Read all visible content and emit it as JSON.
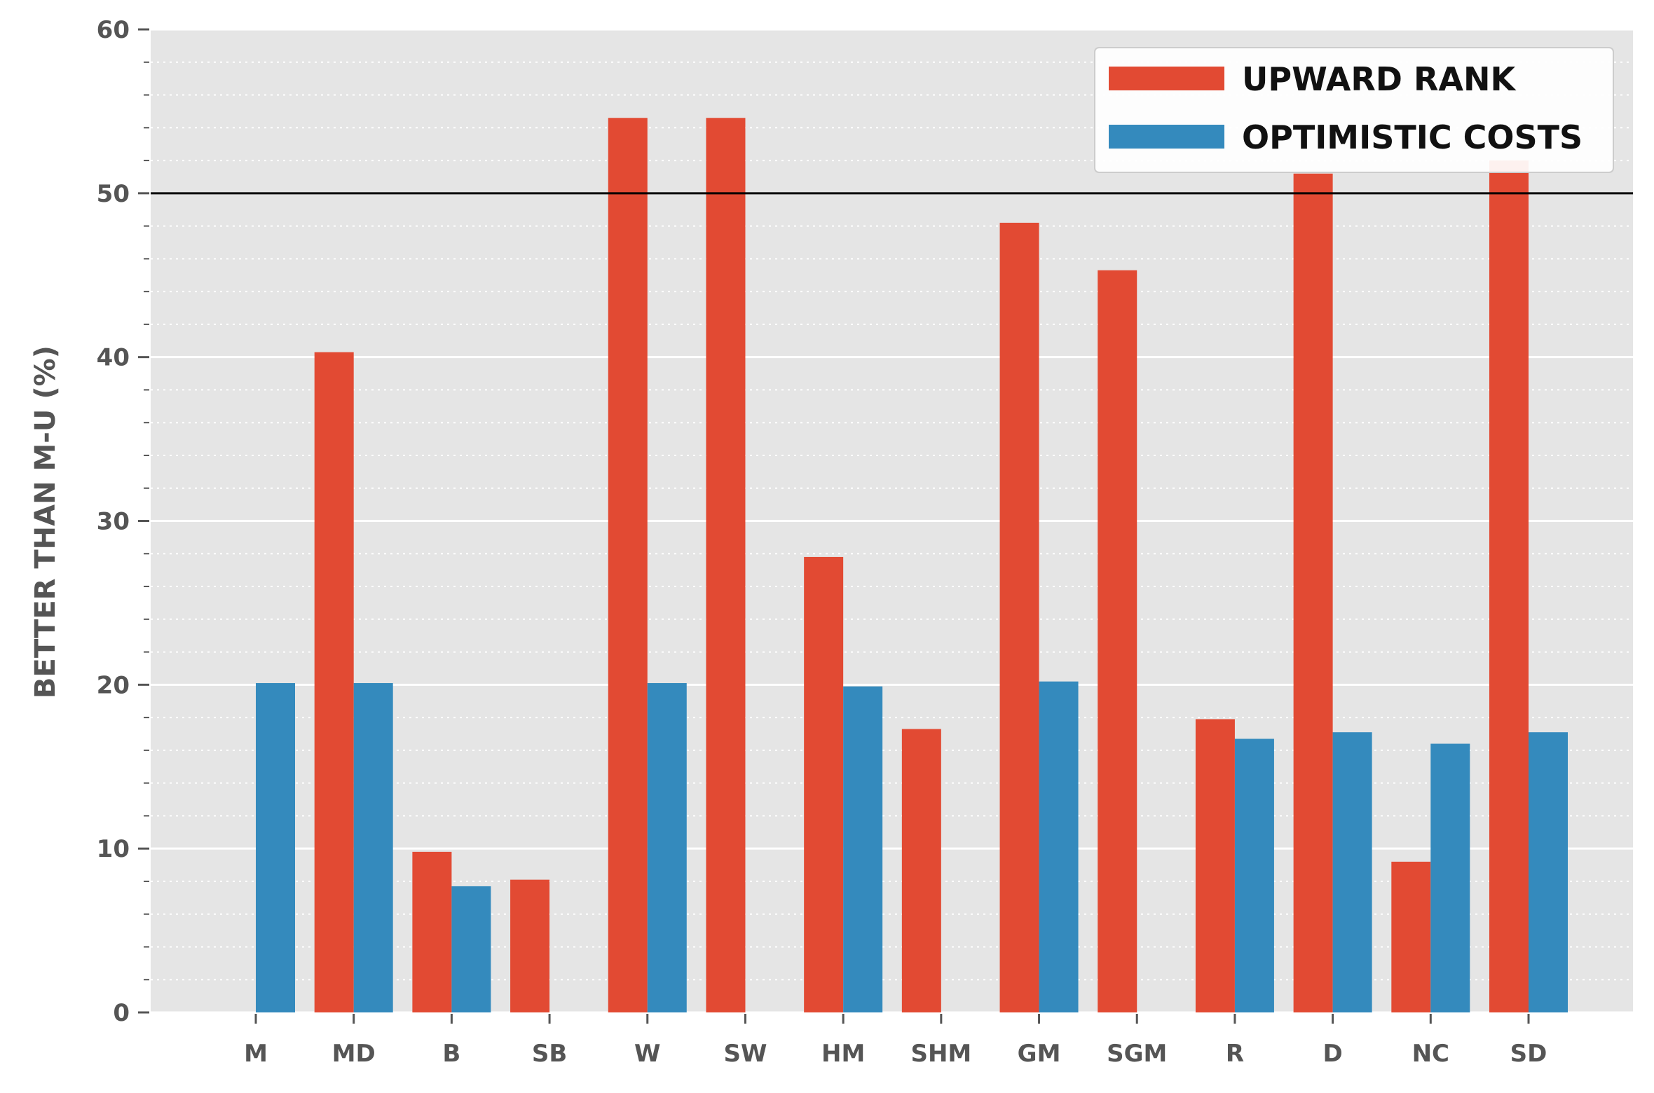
{
  "chart_data": {
    "type": "bar",
    "title": "",
    "xlabel": "",
    "ylabel": "BETTER THAN M-U (%)",
    "ylim": [
      0,
      60
    ],
    "y_ticks": [
      "0",
      "10",
      "20",
      "30",
      "40",
      "50",
      "60"
    ],
    "y_tick_values": [
      0,
      10,
      20,
      30,
      40,
      50,
      60
    ],
    "reference_line": 50,
    "grid": true,
    "legend_position": "top-right",
    "categories": [
      "M",
      "MD",
      "B",
      "SB",
      "W",
      "SW",
      "HM",
      "SHM",
      "GM",
      "SGM",
      "R",
      "D",
      "NC",
      "SD"
    ],
    "series": [
      {
        "name": "UPWARD RANK",
        "color": "#E24A33",
        "values": [
          0,
          40.3,
          9.8,
          8.1,
          54.6,
          54.6,
          27.8,
          17.3,
          48.2,
          45.3,
          17.9,
          51.2,
          9.2,
          52.0
        ]
      },
      {
        "name": "OPTIMISTIC COSTS",
        "color": "#348ABD",
        "values": [
          20.1,
          20.1,
          7.7,
          0,
          20.1,
          0,
          19.9,
          0,
          20.2,
          0,
          16.7,
          17.1,
          16.4,
          17.1
        ]
      }
    ],
    "colors": {
      "plot_background": "#E5E5E5",
      "reference_line": "#000000",
      "tick_text": "#555555"
    }
  }
}
